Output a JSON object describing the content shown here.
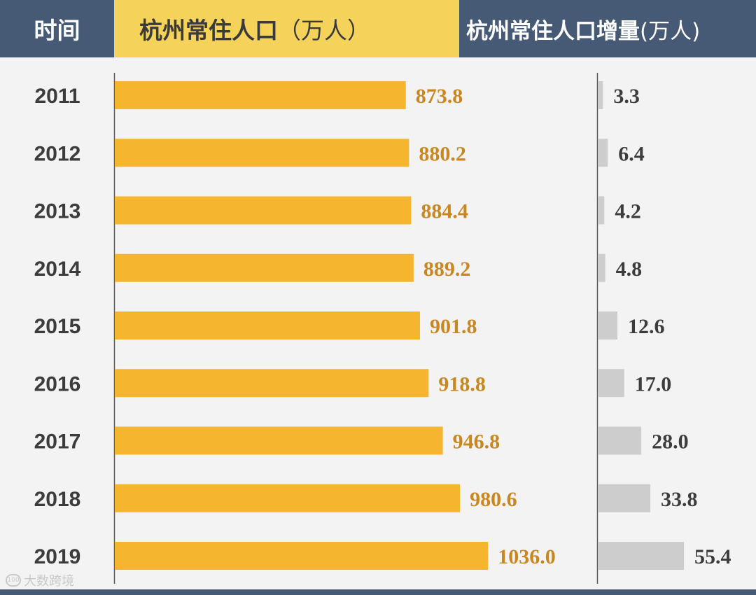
{
  "header": {
    "time_label": "时间",
    "population_label": "杭州常住人口",
    "population_unit": "（万人）",
    "increase_label": "杭州常住人口增量",
    "increase_unit": "(万人)"
  },
  "watermark": "大数跨境",
  "colors": {
    "header_dark": "#465a75",
    "header_yellow": "#f5d35a",
    "population_bar": "#f6b52e",
    "population_value": "#c98722",
    "increase_bar": "#cdcdcd",
    "increase_value": "#3c3c3c",
    "year_text": "#3c3c3c"
  },
  "chart_data": {
    "type": "bar",
    "orientation": "horizontal",
    "categories": [
      "2011",
      "2012",
      "2013",
      "2014",
      "2015",
      "2016",
      "2017",
      "2018",
      "2019"
    ],
    "series": [
      {
        "name": "杭州常住人口（万人）",
        "values": [
          873.8,
          880.2,
          884.4,
          889.2,
          901.8,
          918.8,
          946.8,
          980.6,
          1036.0
        ],
        "labels": [
          "873.8",
          "880.2",
          "884.4",
          "889.2",
          "901.8",
          "918.8",
          "946.8",
          "980.6",
          "1036.0"
        ]
      },
      {
        "name": "杭州常住人口增量(万人)",
        "values": [
          3.3,
          6.4,
          4.2,
          4.8,
          12.6,
          17.0,
          28.0,
          33.8,
          55.4
        ],
        "labels": [
          "3.3",
          "6.4",
          "4.2",
          "4.8",
          "12.6",
          "17.0",
          "28.0",
          "33.8",
          "55.4"
        ]
      }
    ],
    "grid": false
  }
}
